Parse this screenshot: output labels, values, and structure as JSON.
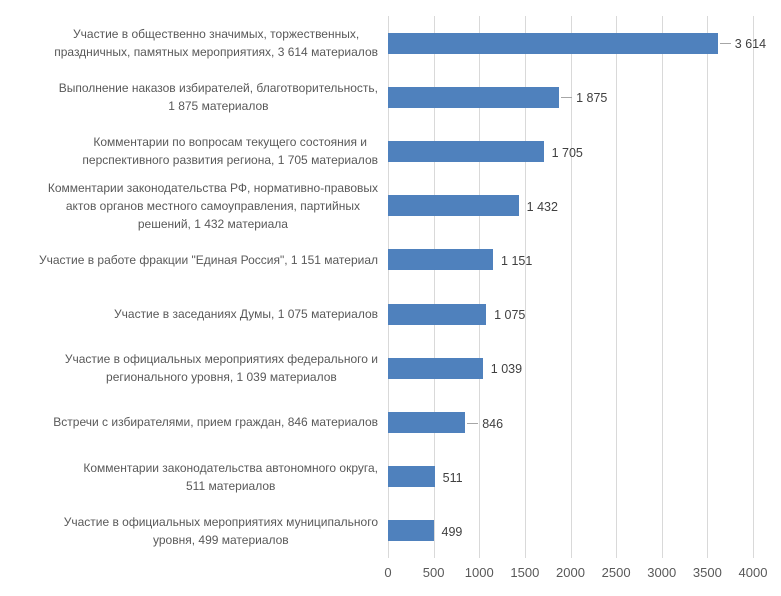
{
  "chart_data": {
    "type": "bar",
    "orientation": "horizontal",
    "title": "",
    "xlabel": "",
    "ylabel": "",
    "xlim": [
      0,
      4000
    ],
    "x_ticks": [
      "0",
      "500",
      "1000",
      "1500",
      "2000",
      "2500",
      "3000",
      "3500",
      "4000"
    ],
    "grid": true,
    "legend_position": "none",
    "bar_color": "#4F81BD",
    "gridline_color": "#d9d9d9",
    "leader_line_color": "#a6a6a6",
    "categories": [
      "Участие в общественно значимых, торжественных,\nпраздничных, памятных мероприятиях, 3 614 материалов",
      "Выполнение наказов избирателей, благотворительность,\n1 875 материалов",
      "Комментарии по вопросам текущего состояния и\nперспективного развития региона, 1 705 материалов",
      "Комментарии законодательства РФ, нормативно-правовых\nактов органов местного самоуправления, партийных\nрешений, 1 432 материала",
      "Участие в работе фракции \"Единая Россия\", 1 151 материал",
      "Участие в заседаниях Думы, 1 075 материалов",
      "Участие в официальных мероприятиях федерального и\nрегионального уровня, 1 039 материалов",
      "Встречи с избирателями, прием граждан, 846 материалов",
      "Комментарии законодательства автономного округа,\n511 материалов",
      "Участие в официальных мероприятиях муниципального\nуровня, 499 материалов"
    ],
    "values": [
      3614,
      1875,
      1705,
      1432,
      1151,
      1075,
      1039,
      846,
      511,
      499
    ],
    "value_labels": [
      "3 614",
      "1 875",
      "1 705",
      "1 432",
      "1 151",
      "1 075",
      "1 039",
      "846",
      "511",
      "499"
    ],
    "leader_lines": [
      true,
      true,
      false,
      false,
      false,
      false,
      false,
      true,
      false,
      false
    ]
  }
}
